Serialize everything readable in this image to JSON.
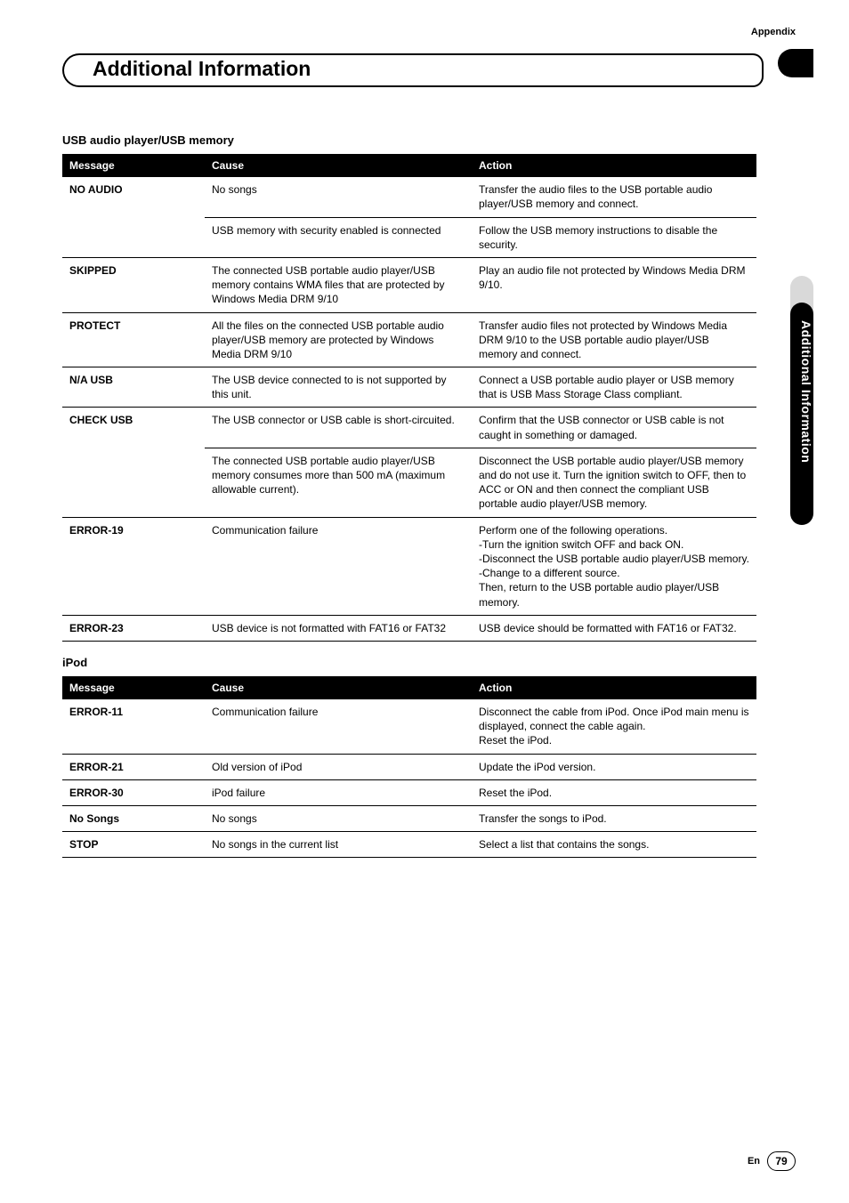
{
  "appendix_label": "Appendix",
  "page_title": "Additional Information",
  "side_tab_text": "Additional Information",
  "footer": {
    "lang": "En",
    "page": "79"
  },
  "tables": [
    {
      "title": "USB audio player/USB memory",
      "headers": [
        "Message",
        "Cause",
        "Action"
      ],
      "rows": [
        {
          "msg": "NO AUDIO",
          "sub": [
            {
              "cause": "No songs",
              "action": "Transfer the audio files to the USB portable audio player/USB memory and connect."
            },
            {
              "cause": "USB memory with security enabled is connected",
              "action": "Follow the USB memory instructions to disable the security."
            }
          ]
        },
        {
          "msg": "SKIPPED",
          "sub": [
            {
              "cause": "The connected USB portable audio player/USB memory contains WMA files that are protected by Windows Media DRM 9/10",
              "action": "Play an audio file not protected by Windows Media DRM 9/10."
            }
          ]
        },
        {
          "msg": "PROTECT",
          "sub": [
            {
              "cause": "All the files on the connected USB portable audio player/USB memory are protected by Windows Media DRM 9/10",
              "action": "Transfer audio files not protected by Windows Media DRM 9/10 to the USB portable audio player/USB memory and connect."
            }
          ]
        },
        {
          "msg": "N/A USB",
          "sub": [
            {
              "cause": "The USB device connected to is not supported by this unit.",
              "action": "Connect a USB portable audio player or USB memory that is USB Mass Storage Class compliant."
            }
          ]
        },
        {
          "msg": "CHECK USB",
          "sub": [
            {
              "cause": "The USB connector or USB cable is short-circuited.",
              "action": "Confirm that the USB connector or USB cable is not caught in something or damaged."
            },
            {
              "cause": "The connected USB portable audio player/USB memory consumes more than 500 mA (maximum allowable current).",
              "action": "Disconnect the USB portable audio player/USB memory and do not use it. Turn the ignition switch to OFF, then to ACC or ON and then connect the compliant USB portable audio player/USB memory."
            }
          ]
        },
        {
          "msg": "ERROR-19",
          "sub": [
            {
              "cause": "Communication failure",
              "action": "Perform one of the following operations.\n-Turn the ignition switch OFF and back ON.\n-Disconnect the USB portable audio player/USB memory.\n-Change to a different source.\nThen, return to the USB portable audio player/USB memory."
            }
          ]
        },
        {
          "msg": "ERROR-23",
          "sub": [
            {
              "cause": "USB device is not formatted with FAT16 or FAT32",
              "action": "USB device should be formatted with FAT16 or FAT32."
            }
          ]
        }
      ]
    },
    {
      "title": "iPod",
      "headers": [
        "Message",
        "Cause",
        "Action"
      ],
      "rows": [
        {
          "msg": "ERROR-11",
          "sub": [
            {
              "cause": "Communication failure",
              "action": "Disconnect the cable from iPod. Once iPod main menu is displayed, connect the cable again.\nReset the iPod."
            }
          ]
        },
        {
          "msg": "ERROR-21",
          "sub": [
            {
              "cause": "Old version of iPod",
              "action": "Update the iPod version."
            }
          ]
        },
        {
          "msg": "ERROR-30",
          "sub": [
            {
              "cause": "iPod failure",
              "action": "Reset the iPod."
            }
          ]
        },
        {
          "msg": "No Songs",
          "sub": [
            {
              "cause": "No songs",
              "action": "Transfer the songs to iPod."
            }
          ]
        },
        {
          "msg": "STOP",
          "sub": [
            {
              "cause": "No songs in the current list",
              "action": "Select a list that contains the songs."
            }
          ]
        }
      ]
    }
  ]
}
